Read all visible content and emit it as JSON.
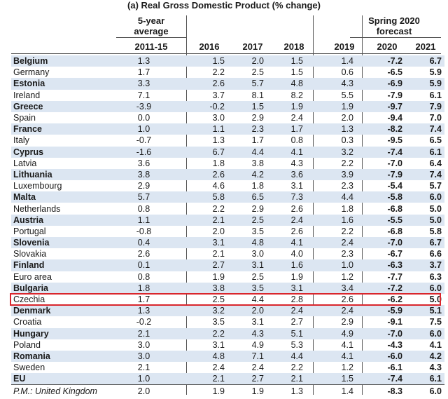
{
  "title": "(a) Real Gross Domestic Product (% change)",
  "header": {
    "avg_label": "5-year",
    "avg_label2": "average",
    "forecast_label": "Spring 2020",
    "forecast_label2": "forecast",
    "cols": [
      "2011-15",
      "2016",
      "2017",
      "2018",
      "2019",
      "2020",
      "2021"
    ]
  },
  "highlight_color": "#d9262c",
  "shade_color": "#dce6f2",
  "rows": [
    {
      "name": "Belgium",
      "vals": [
        "1.3",
        "1.5",
        "2.0",
        "1.5",
        "1.4",
        "-7.2",
        "6.7"
      ],
      "shaded": true
    },
    {
      "name": "Germany",
      "vals": [
        "1.7",
        "2.2",
        "2.5",
        "1.5",
        "0.6",
        "-6.5",
        "5.9"
      ],
      "shaded": false
    },
    {
      "name": "Estonia",
      "vals": [
        "3.3",
        "2.6",
        "5.7",
        "4.8",
        "4.3",
        "-6.9",
        "5.9"
      ],
      "shaded": true
    },
    {
      "name": "Ireland",
      "vals": [
        "7.1",
        "3.7",
        "8.1",
        "8.2",
        "5.5",
        "-7.9",
        "6.1"
      ],
      "shaded": false
    },
    {
      "name": "Greece",
      "vals": [
        "-3.9",
        "-0.2",
        "1.5",
        "1.9",
        "1.9",
        "-9.7",
        "7.9"
      ],
      "shaded": true
    },
    {
      "name": "Spain",
      "vals": [
        "0.0",
        "3.0",
        "2.9",
        "2.4",
        "2.0",
        "-9.4",
        "7.0"
      ],
      "shaded": false
    },
    {
      "name": "France",
      "vals": [
        "1.0",
        "1.1",
        "2.3",
        "1.7",
        "1.3",
        "-8.2",
        "7.4"
      ],
      "shaded": true
    },
    {
      "name": "Italy",
      "vals": [
        "-0.7",
        "1.3",
        "1.7",
        "0.8",
        "0.3",
        "-9.5",
        "6.5"
      ],
      "shaded": false
    },
    {
      "name": "Cyprus",
      "vals": [
        "-1.6",
        "6.7",
        "4.4",
        "4.1",
        "3.2",
        "-7.4",
        "6.1"
      ],
      "shaded": true
    },
    {
      "name": "Latvia",
      "vals": [
        "3.6",
        "1.8",
        "3.8",
        "4.3",
        "2.2",
        "-7.0",
        "6.4"
      ],
      "shaded": false
    },
    {
      "name": "Lithuania",
      "vals": [
        "3.8",
        "2.6",
        "4.2",
        "3.6",
        "3.9",
        "-7.9",
        "7.4"
      ],
      "shaded": true
    },
    {
      "name": "Luxembourg",
      "vals": [
        "2.9",
        "4.6",
        "1.8",
        "3.1",
        "2.3",
        "-5.4",
        "5.7"
      ],
      "shaded": false
    },
    {
      "name": "Malta",
      "vals": [
        "5.7",
        "5.8",
        "6.5",
        "7.3",
        "4.4",
        "-5.8",
        "6.0"
      ],
      "shaded": true
    },
    {
      "name": "Netherlands",
      "vals": [
        "0.8",
        "2.2",
        "2.9",
        "2.6",
        "1.8",
        "-6.8",
        "5.0"
      ],
      "shaded": false
    },
    {
      "name": "Austria",
      "vals": [
        "1.1",
        "2.1",
        "2.5",
        "2.4",
        "1.6",
        "-5.5",
        "5.0"
      ],
      "shaded": true
    },
    {
      "name": "Portugal",
      "vals": [
        "-0.8",
        "2.0",
        "3.5",
        "2.6",
        "2.2",
        "-6.8",
        "5.8"
      ],
      "shaded": false
    },
    {
      "name": "Slovenia",
      "vals": [
        "0.4",
        "3.1",
        "4.8",
        "4.1",
        "2.4",
        "-7.0",
        "6.7"
      ],
      "shaded": true
    },
    {
      "name": "Slovakia",
      "vals": [
        "2.6",
        "2.1",
        "3.0",
        "4.0",
        "2.3",
        "-6.7",
        "6.6"
      ],
      "shaded": false
    },
    {
      "name": "Finland",
      "vals": [
        "0.1",
        "2.7",
        "3.1",
        "1.6",
        "1.0",
        "-6.3",
        "3.7"
      ],
      "shaded": true
    },
    {
      "name": "Euro area",
      "vals": [
        "0.8",
        "1.9",
        "2.5",
        "1.9",
        "1.2",
        "-7.7",
        "6.3"
      ],
      "shaded": false
    },
    {
      "name": "Bulgaria",
      "vals": [
        "1.8",
        "3.8",
        "3.5",
        "3.1",
        "3.4",
        "-7.2",
        "6.0"
      ],
      "shaded": true
    },
    {
      "name": "Czechia",
      "vals": [
        "1.7",
        "2.5",
        "4.4",
        "2.8",
        "2.6",
        "-6.2",
        "5.0"
      ],
      "shaded": false,
      "highlight": true
    },
    {
      "name": "Denmark",
      "vals": [
        "1.3",
        "3.2",
        "2.0",
        "2.4",
        "2.4",
        "-5.9",
        "5.1"
      ],
      "shaded": true
    },
    {
      "name": "Croatia",
      "vals": [
        "-0.2",
        "3.5",
        "3.1",
        "2.7",
        "2.9",
        "-9.1",
        "7.5"
      ],
      "shaded": false
    },
    {
      "name": "Hungary",
      "vals": [
        "2.1",
        "2.2",
        "4.3",
        "5.1",
        "4.9",
        "-7.0",
        "6.0"
      ],
      "shaded": true
    },
    {
      "name": "Poland",
      "vals": [
        "3.0",
        "3.1",
        "4.9",
        "5.3",
        "4.1",
        "-4.3",
        "4.1"
      ],
      "shaded": false
    },
    {
      "name": "Romania",
      "vals": [
        "3.0",
        "4.8",
        "7.1",
        "4.4",
        "4.1",
        "-6.0",
        "4.2"
      ],
      "shaded": true
    },
    {
      "name": "Sweden",
      "vals": [
        "2.1",
        "2.4",
        "2.4",
        "2.2",
        "1.2",
        "-6.1",
        "4.3"
      ],
      "shaded": false
    },
    {
      "name": "EU",
      "vals": [
        "1.0",
        "2.1",
        "2.7",
        "2.1",
        "1.5",
        "-7.4",
        "6.1"
      ],
      "shaded": true
    },
    {
      "name": "P.M.: United Kingdom",
      "vals": [
        "2.0",
        "1.9",
        "1.9",
        "1.3",
        "1.4",
        "-8.3",
        "6.0"
      ],
      "shaded": false,
      "pm": true
    }
  ]
}
